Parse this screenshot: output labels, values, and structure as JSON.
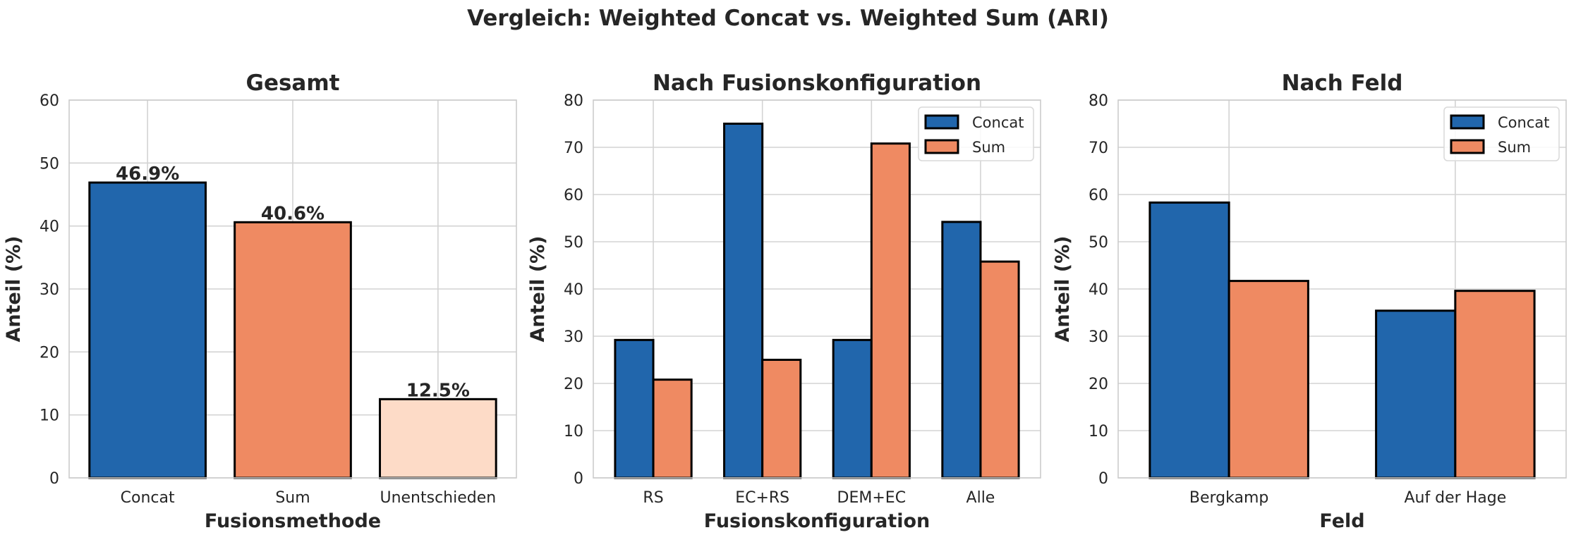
{
  "figure": {
    "suptitle": "Vergleich: Weighted Concat vs. Weighted Sum (ARI)"
  },
  "colors": {
    "concat": "#2166ac",
    "sum": "#ef8a62",
    "undecided": "#fddbc7",
    "grid": "#d3d3d3",
    "edge": "#000000",
    "text": "#262626"
  },
  "chart_data": [
    {
      "type": "bar",
      "title": "Gesamt",
      "xlabel": "Fusionsmethode",
      "ylabel": "Anteil (%)",
      "ylim": [
        0,
        60
      ],
      "yticks": [
        0,
        10,
        20,
        30,
        40,
        50,
        60
      ],
      "grid": true,
      "categories": [
        "Concat",
        "Sum",
        "Unentschieden"
      ],
      "values": [
        46.9,
        40.6,
        12.5
      ],
      "bar_colors": [
        "#2166ac",
        "#ef8a62",
        "#fddbc7"
      ],
      "data_labels": [
        "46.9%",
        "40.6%",
        "12.5%"
      ]
    },
    {
      "type": "bar",
      "title": "Nach Fusionskonfiguration",
      "xlabel": "Fusionskonfiguration",
      "ylabel": "Anteil (%)",
      "ylim": [
        0,
        80
      ],
      "yticks": [
        0,
        10,
        20,
        30,
        40,
        50,
        60,
        70,
        80
      ],
      "grid": true,
      "legend_position": "upper right",
      "categories": [
        "RS",
        "EC+RS",
        "DEM+EC",
        "Alle"
      ],
      "series": [
        {
          "name": "Concat",
          "color": "#2166ac",
          "values": [
            29.2,
            75.0,
            29.2,
            54.2
          ]
        },
        {
          "name": "Sum",
          "color": "#ef8a62",
          "values": [
            20.8,
            25.0,
            70.8,
            45.8
          ]
        }
      ]
    },
    {
      "type": "bar",
      "title": "Nach Feld",
      "xlabel": "Feld",
      "ylabel": "Anteil (%)",
      "ylim": [
        0,
        80
      ],
      "yticks": [
        0,
        10,
        20,
        30,
        40,
        50,
        60,
        70,
        80
      ],
      "grid": true,
      "legend_position": "upper right",
      "categories": [
        "Bergkamp",
        "Auf der Hage"
      ],
      "series": [
        {
          "name": "Concat",
          "color": "#2166ac",
          "values": [
            58.3,
            35.4
          ]
        },
        {
          "name": "Sum",
          "color": "#ef8a62",
          "values": [
            41.7,
            39.6
          ]
        }
      ]
    }
  ]
}
